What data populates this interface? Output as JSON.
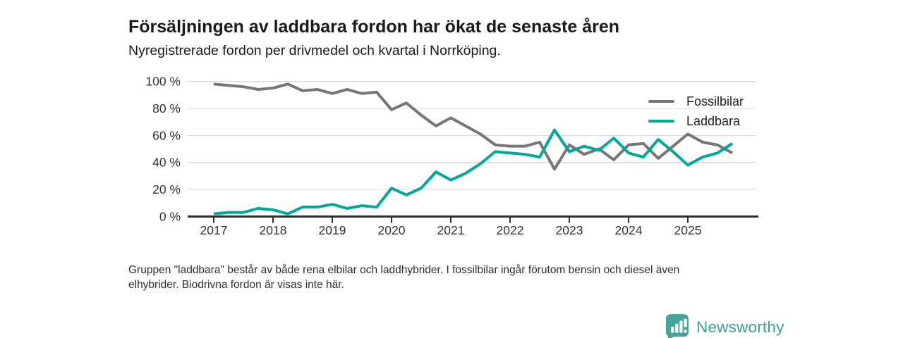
{
  "chart_data": {
    "type": "line",
    "title": "Försäljningen av laddbara fordon har ökat de senaste åren",
    "subtitle": "Nyregistrerade fordon per drivmedel och kvartal i Norrköping.",
    "x": [
      "2017 Q1",
      "2017 Q2",
      "2017 Q3",
      "2017 Q4",
      "2018 Q1",
      "2018 Q2",
      "2018 Q3",
      "2018 Q4",
      "2019 Q1",
      "2019 Q2",
      "2019 Q3",
      "2019 Q4",
      "2020 Q1",
      "2020 Q2",
      "2020 Q3",
      "2020 Q4",
      "2021 Q1",
      "2021 Q2",
      "2021 Q3",
      "2021 Q4",
      "2022 Q1",
      "2022 Q2",
      "2022 Q3",
      "2022 Q4",
      "2023 Q1",
      "2023 Q2",
      "2023 Q3",
      "2023 Q4",
      "2024 Q1",
      "2024 Q2",
      "2024 Q3",
      "2024 Q4",
      "2025 Q1",
      "2025 Q2",
      "2025 Q3",
      "2025 Q4"
    ],
    "x_tick_labels": [
      "2017",
      "2018",
      "2019",
      "2020",
      "2021",
      "2022",
      "2023",
      "2024",
      "2025"
    ],
    "series": [
      {
        "name": "Fossilbilar",
        "color": "#767676",
        "values": [
          98,
          97,
          96,
          94,
          95,
          98,
          93,
          94,
          91,
          94,
          91,
          92,
          79,
          84,
          75,
          67,
          73,
          67,
          61,
          53,
          52,
          52,
          55,
          35,
          53,
          46,
          50,
          42,
          53,
          54,
          43,
          52,
          61,
          55,
          53,
          47
        ]
      },
      {
        "name": "Laddbara",
        "color": "#00a79b",
        "values": [
          2,
          3,
          3,
          6,
          5,
          2,
          7,
          7,
          9,
          6,
          8,
          7,
          21,
          16,
          21,
          33,
          27,
          32,
          39,
          48,
          47,
          46,
          44,
          64,
          48,
          52,
          49,
          58,
          47,
          44,
          57,
          48,
          38,
          44,
          47,
          54
        ]
      }
    ],
    "unit": "%",
    "ylim": [
      0,
      100
    ],
    "y_ticks": [
      0,
      20,
      40,
      60,
      80,
      100
    ],
    "y_tick_labels": [
      "0 %",
      "20 %",
      "40 %",
      "60 %",
      "80 %",
      "100 %"
    ],
    "grid": true,
    "legend_position": "top-right"
  },
  "footnote": {
    "line1": "Gruppen \"laddbara\" består av både rena elbilar och laddhybrider. I fossilbilar ingår förutom bensin och diesel även",
    "line2": "elhybrider. Biodrivna fordon är visas inte här."
  },
  "logo": {
    "text": "Newsworthy",
    "text_color": "#38a099",
    "icon": "bar-chart-bubble-icon",
    "icon_color": "#46a39c"
  }
}
